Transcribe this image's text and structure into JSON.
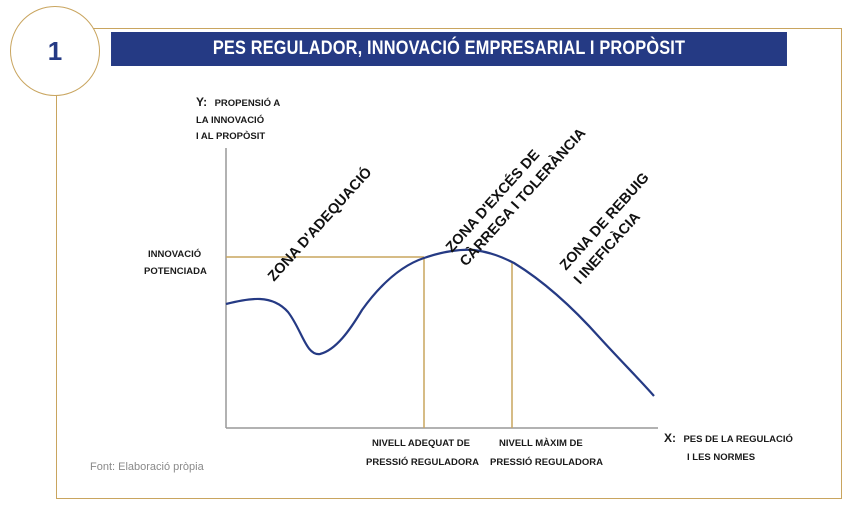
{
  "badge": {
    "number": "1"
  },
  "title": "PES REGULADOR, INNOVACIÓ EMPRESARIAL I PROPÒSIT",
  "y_axis": {
    "label_bold": "Y:",
    "lines": [
      "PROPENSIÓ A",
      "LA INNOVACIÓ",
      "I AL PROPÒSIT"
    ]
  },
  "x_axis": {
    "label_bold": "X:",
    "lines": [
      "PES DE LA REGULACIÓ",
      "I LES NORMES"
    ]
  },
  "innovacio_label": [
    "INNOVACIÓ",
    "POTENCIADA"
  ],
  "markers": [
    {
      "lines": [
        "NIVELL ADEQUAT DE",
        "PRESSIÓ REGULADORA"
      ]
    },
    {
      "lines": [
        "NIVELL MÀXIM DE",
        "PRESSIÓ REGULADORA"
      ]
    }
  ],
  "zones": [
    {
      "lines": [
        "ZONA D'ADEQUACIÓ"
      ]
    },
    {
      "lines": [
        "ZONA D'EXCÉS DE",
        "CÀRREGA I TOLERÀNCIA"
      ]
    },
    {
      "lines": [
        "ZONA DE REBUIG",
        "I INEFICÀCIA"
      ]
    }
  ],
  "source": "Font: Elaboració pròpia",
  "colors": {
    "navy": "#253a84",
    "gold": "#c9a55f",
    "axis": "#999999",
    "curve": "#253a84"
  }
}
